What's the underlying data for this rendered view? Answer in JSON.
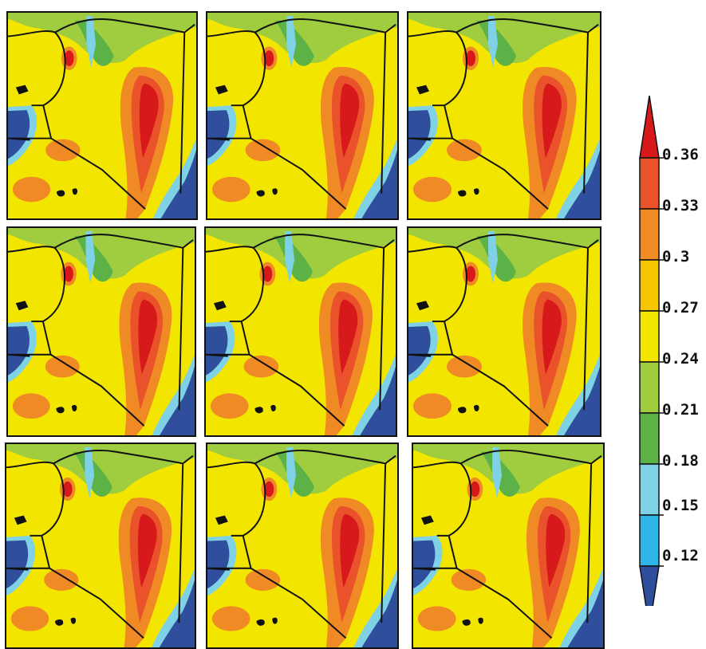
{
  "colorbar": {
    "labels": [
      "0.36",
      "0.33",
      "0.3",
      "0.27",
      "0.24",
      "0.21",
      "0.18",
      "0.15",
      "0.12"
    ],
    "colors_top_to_bottom": [
      "#d7191c",
      "#e9522a",
      "#f08a24",
      "#f3c600",
      "#f2e600",
      "#9fcd3f",
      "#5cb247",
      "#7fd2e6",
      "#2fb5e8",
      "#2f4e9c"
    ]
  },
  "map": {
    "panel_count": 9,
    "colors": {
      "land_base": "#f2e600",
      "ocean": "#2f4e9c",
      "coast_light": "#7fd2e6",
      "coast_mid": "#2fb5e8",
      "green_light": "#9fcd3f",
      "green_dark": "#5cb247",
      "orange": "#f08a24",
      "red": "#d7191c",
      "red_mid": "#e9522a",
      "border": "#111111"
    }
  }
}
